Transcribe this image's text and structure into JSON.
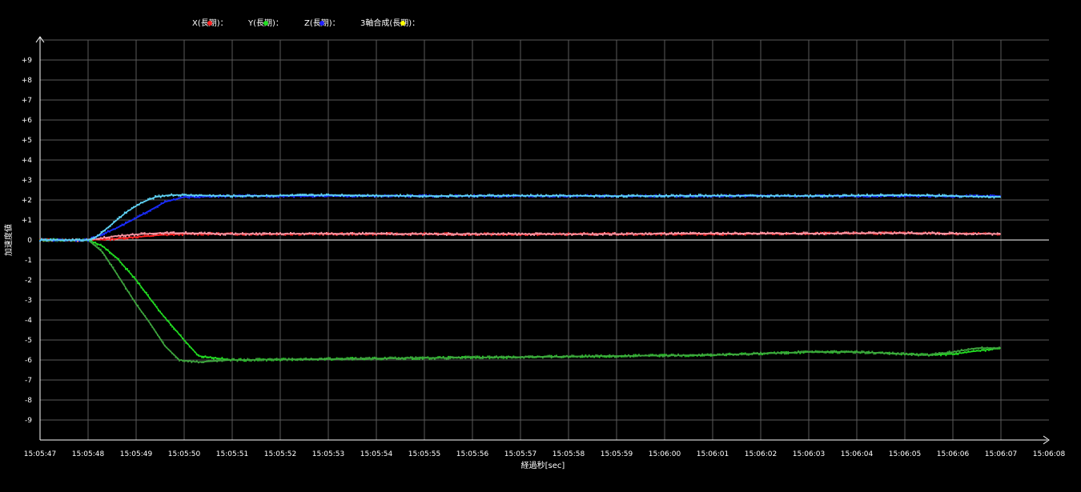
{
  "chart_data": {
    "type": "line",
    "title": "",
    "xlabel": "経過秒[sec]",
    "ylabel": "加速度値",
    "x_ticks": [
      "15:05:47",
      "15:05:48",
      "15:05:49",
      "15:05:50",
      "15:05:51",
      "15:05:52",
      "15:05:53",
      "15:05:54",
      "15:05:55",
      "15:05:56",
      "15:05:57",
      "15:05:58",
      "15:05:59",
      "15:06:00",
      "15:06:01",
      "15:06:02",
      "15:06:03",
      "15:06:04",
      "15:06:05",
      "15:06:06",
      "15:06:07",
      "15:06:08"
    ],
    "y_ticks": [
      "+9",
      "+8",
      "+7",
      "+6",
      "+5",
      "+4",
      "+3",
      "+2",
      "+1",
      "0",
      "-1",
      "-2",
      "-3",
      "-4",
      "-5",
      "-6",
      "-7",
      "-8",
      "-9"
    ],
    "ylim": [
      -10,
      10
    ],
    "xlim_seconds": [
      0,
      21
    ],
    "grid": true,
    "legend_position": "top-left",
    "legend": [
      {
        "label": "X(長期)：",
        "color": "#ff2020"
      },
      {
        "label": "Y(長期)：",
        "color": "#22dd22"
      },
      {
        "label": "Z(長期)：",
        "color": "#2020ff"
      },
      {
        "label": "3軸合成(長期)：",
        "color": "#ffff00"
      }
    ],
    "series": [
      {
        "key": "x_long",
        "color": "#ff2020",
        "x": [
          0,
          1,
          1.5,
          2,
          2.5,
          3,
          4,
          6,
          8,
          10,
          12,
          14,
          16,
          18,
          20
        ],
        "y": [
          0,
          0,
          0.05,
          0.15,
          0.25,
          0.3,
          0.3,
          0.3,
          0.3,
          0.28,
          0.3,
          0.3,
          0.32,
          0.35,
          0.3
        ]
      },
      {
        "key": "x_short",
        "color": "#ff9aa8",
        "x": [
          0,
          1,
          1.3,
          1.6,
          2,
          2.5,
          3,
          4,
          6,
          8,
          10,
          12,
          14,
          16,
          18,
          20
        ],
        "y": [
          0,
          0,
          0.1,
          0.2,
          0.28,
          0.35,
          0.35,
          0.3,
          0.32,
          0.3,
          0.3,
          0.3,
          0.33,
          0.33,
          0.35,
          0.3
        ]
      },
      {
        "key": "y_long",
        "color": "#22dd22",
        "x": [
          0,
          1,
          1.3,
          1.6,
          2,
          2.5,
          3,
          3.3,
          4,
          6,
          8,
          10,
          12,
          14,
          16,
          17,
          18,
          18.5,
          19,
          20
        ],
        "y": [
          0,
          0,
          -0.3,
          -0.9,
          -2,
          -3.6,
          -5,
          -5.8,
          -6,
          -5.95,
          -5.9,
          -5.85,
          -5.8,
          -5.75,
          -5.6,
          -5.6,
          -5.7,
          -5.75,
          -5.7,
          -5.4
        ]
      },
      {
        "key": "y_short",
        "color": "#3fa63f",
        "x": [
          0,
          1,
          1.3,
          1.6,
          2,
          2.3,
          2.6,
          2.9,
          3.3,
          4,
          6,
          8,
          10,
          12,
          14,
          16,
          17,
          18,
          18.5,
          19,
          19.5,
          20
        ],
        "y": [
          0,
          0,
          -0.6,
          -1.7,
          -3.2,
          -4.2,
          -5.3,
          -6,
          -6.1,
          -6,
          -5.95,
          -5.9,
          -5.85,
          -5.8,
          -5.75,
          -5.6,
          -5.6,
          -5.7,
          -5.75,
          -5.6,
          -5.4,
          -5.4
        ]
      },
      {
        "key": "z_long",
        "color": "#1a2cff",
        "x": [
          0,
          1,
          1.3,
          1.6,
          2,
          2.3,
          2.6,
          3,
          4,
          6,
          8,
          10,
          12,
          14,
          16,
          18,
          20
        ],
        "y": [
          0,
          0,
          0.3,
          0.6,
          1.1,
          1.5,
          1.9,
          2.15,
          2.2,
          2.2,
          2.2,
          2.2,
          2.2,
          2.2,
          2.2,
          2.2,
          2.2
        ]
      },
      {
        "key": "z_short",
        "color": "#5fd3f5",
        "x": [
          0,
          1,
          1.2,
          1.5,
          1.8,
          2.1,
          2.4,
          2.7,
          3,
          4,
          6,
          8,
          10,
          12,
          14,
          16,
          18,
          20
        ],
        "y": [
          0,
          0,
          0.2,
          0.8,
          1.4,
          1.85,
          2.15,
          2.25,
          2.25,
          2.2,
          2.25,
          2.2,
          2.22,
          2.2,
          2.22,
          2.2,
          2.25,
          2.15
        ]
      }
    ]
  }
}
